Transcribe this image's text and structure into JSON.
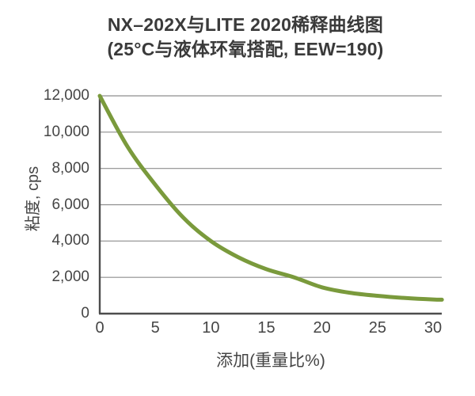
{
  "title": {
    "line1": "NX–202X与LITE 2020稀释曲线图",
    "line2": "(25°C与液体环氧搭配, EEW=190)"
  },
  "y_axis": {
    "title": "粘度, cps",
    "tick_labels": [
      "12,000",
      "10,000",
      "8,000",
      "6,000",
      "4,000",
      "2,000",
      "0"
    ]
  },
  "x_axis": {
    "title": "添加(重量比%)",
    "tick_labels": [
      "0",
      "5",
      "10",
      "15",
      "20",
      "25",
      "30"
    ]
  },
  "colors": {
    "curve": "#7a9a3c",
    "grid": "#8e8e8e",
    "axis": "#4d4d4d",
    "text": "#454545",
    "title_text": "#3a3a3a",
    "background": "#ffffff"
  },
  "chart_data": {
    "type": "line",
    "title": "NX–202X与LITE 2020稀释曲线图 (25°C与液体环氧搭配, EEW=190)",
    "xlabel": "添加(重量比%)",
    "ylabel": "粘度, cps",
    "xlim": [
      0,
      30.8
    ],
    "ylim": [
      0,
      12000
    ],
    "x_ticks": [
      0,
      5,
      10,
      15,
      20,
      25,
      30
    ],
    "y_ticks": [
      0,
      2000,
      4000,
      6000,
      8000,
      10000,
      12000
    ],
    "grid": "horizontal-only",
    "legend": "none",
    "x": [
      0,
      2.5,
      5,
      7.5,
      10,
      12.5,
      15,
      17.5,
      20,
      22.5,
      25,
      27.5,
      30,
      30.8
    ],
    "series": [
      {
        "name": "NX-202X + LITE 2020 稀释曲线",
        "values": [
          12000,
          9200,
          7100,
          5300,
          4000,
          3100,
          2450,
          2000,
          1450,
          1150,
          980,
          860,
          780,
          770
        ]
      }
    ]
  }
}
